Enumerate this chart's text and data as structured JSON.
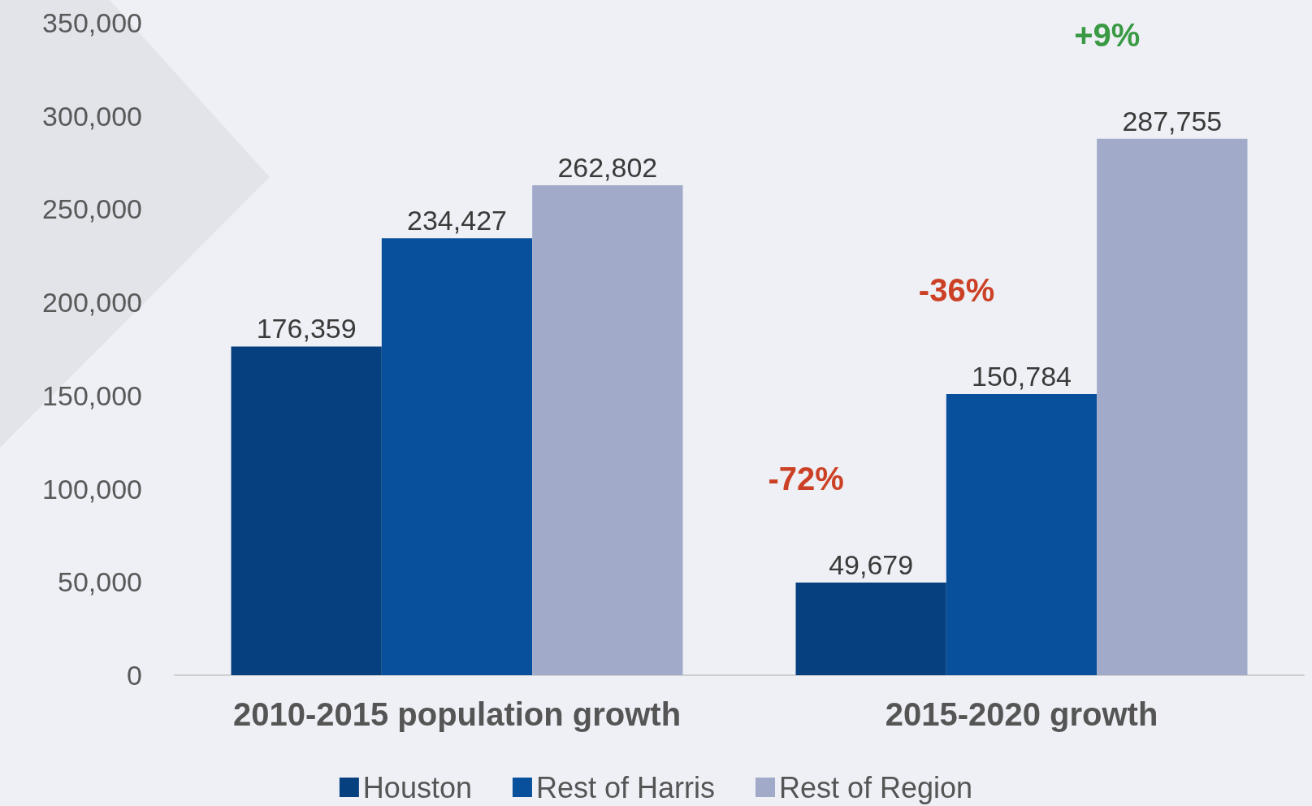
{
  "chart_data": {
    "type": "bar",
    "categories": [
      "2010-2015 population growth",
      "2015-2020 growth"
    ],
    "series": [
      {
        "name": "Houston",
        "color": "#06407e",
        "values": [
          176359,
          49679
        ],
        "value_labels": [
          "176,359",
          "49,679"
        ]
      },
      {
        "name": "Rest of Harris",
        "color": "#08509c",
        "values": [
          234427,
          150784
        ],
        "value_labels": [
          "234,427",
          "150,784"
        ]
      },
      {
        "name": "Rest of Region",
        "color": "#a1aac8",
        "values": [
          262802,
          287755
        ],
        "value_labels": [
          "262,802",
          "287,755"
        ]
      }
    ],
    "ylim": [
      0,
      350000
    ],
    "yticks": [
      0,
      {
        "value": 50000,
        "label": "50,000"
      },
      {
        "value": 100000,
        "label": "100,000"
      },
      {
        "value": 150000,
        "label": "150,000"
      },
      {
        "value": 200000,
        "label": "200,000"
      },
      {
        "value": 250000,
        "label": "250,000"
      },
      {
        "value": 300000,
        "label": "300,000"
      },
      {
        "value": 350000,
        "label": "350,000"
      }
    ],
    "grid": false,
    "legend": "bottom",
    "annotations": [
      "-72%",
      "-36%",
      "+9%"
    ]
  }
}
